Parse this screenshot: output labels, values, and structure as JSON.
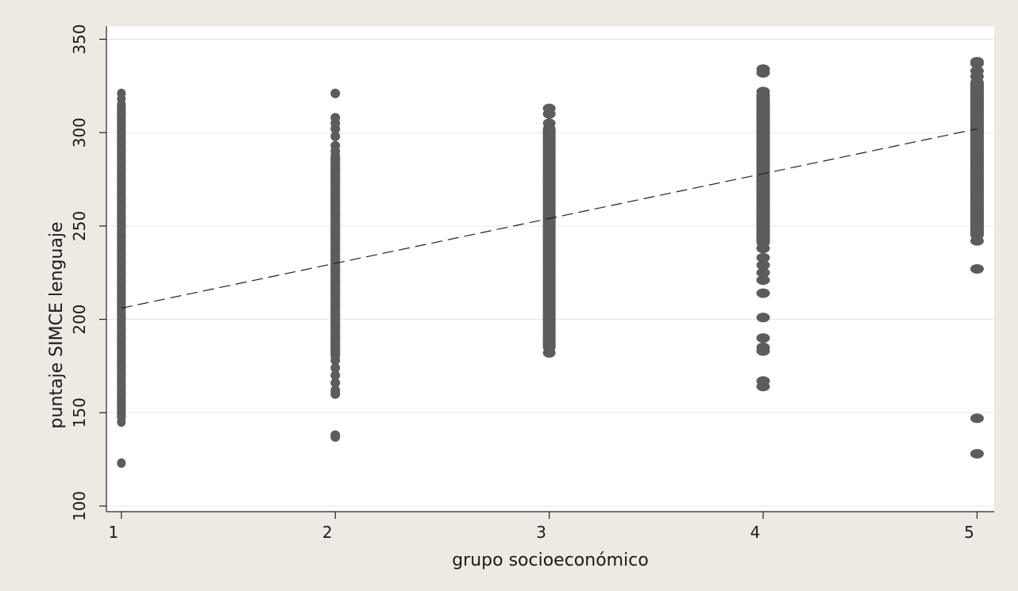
{
  "chart_data": {
    "type": "scatter",
    "title": "",
    "xlabel": "grupo socioeconómico",
    "ylabel": "puntaje SIMCE lenguaje",
    "xlim": [
      0.93,
      5.08
    ],
    "ylim": [
      97,
      357
    ],
    "xticks": [
      1,
      2,
      3,
      4,
      5
    ],
    "yticks": [
      100,
      150,
      200,
      250,
      300,
      350
    ],
    "grid": true,
    "legend": "none",
    "colors": {
      "background": "#efe9e3",
      "plot": "#ffffff",
      "points": "#5c5c5c",
      "trend": "#222222",
      "grid": "#e6e6e6"
    },
    "series": [
      {
        "kind": "points",
        "groups": [
          {
            "x": 1,
            "band": [
              145,
              317
            ],
            "points": [
              123,
              145,
              148,
              150,
              155,
              160,
              165,
              170,
              175,
              180,
              185,
              190,
              195,
              200,
              205,
              210,
              215,
              220,
              225,
              230,
              235,
              240,
              245,
              250,
              255,
              260,
              265,
              270,
              275,
              280,
              285,
              290,
              295,
              300,
              305,
              310,
              315,
              318,
              321
            ]
          },
          {
            "x": 2,
            "band": [
              178,
              290
            ],
            "points": [
              137,
              138,
              160,
              162,
              166,
              170,
              174,
              178,
              184,
              190,
              196,
              202,
              208,
              214,
              220,
              226,
              232,
              238,
              244,
              250,
              256,
              262,
              268,
              274,
              280,
              286,
              290,
              293,
              298,
              302,
              305,
              308,
              321
            ]
          },
          {
            "x": 3,
            "band": [
              182,
              305
            ],
            "points": [
              182,
              185,
              190,
              195,
              200,
              205,
              210,
              215,
              220,
              225,
              230,
              235,
              240,
              245,
              250,
              255,
              260,
              265,
              270,
              275,
              280,
              285,
              290,
              295,
              300,
              305,
              310,
              313
            ]
          },
          {
            "x": 4,
            "band": [
              238,
              322
            ],
            "points": [
              164,
              167,
              183,
              185,
              190,
              201,
              214,
              221,
              225,
              229,
              233,
              238,
              245,
              252,
              260,
              268,
              276,
              284,
              292,
              300,
              308,
              316,
              320,
              322,
              332,
              334
            ]
          },
          {
            "x": 5,
            "band": [
              242,
              330
            ],
            "points": [
              128,
              147,
              227,
              242,
              246,
              252,
              258,
              264,
              270,
              276,
              282,
              288,
              294,
              300,
              306,
              312,
              318,
              324,
              330,
              333,
              337,
              338
            ]
          }
        ]
      },
      {
        "kind": "trend",
        "x": [
          1,
          5
        ],
        "y": [
          206,
          302
        ]
      }
    ]
  }
}
